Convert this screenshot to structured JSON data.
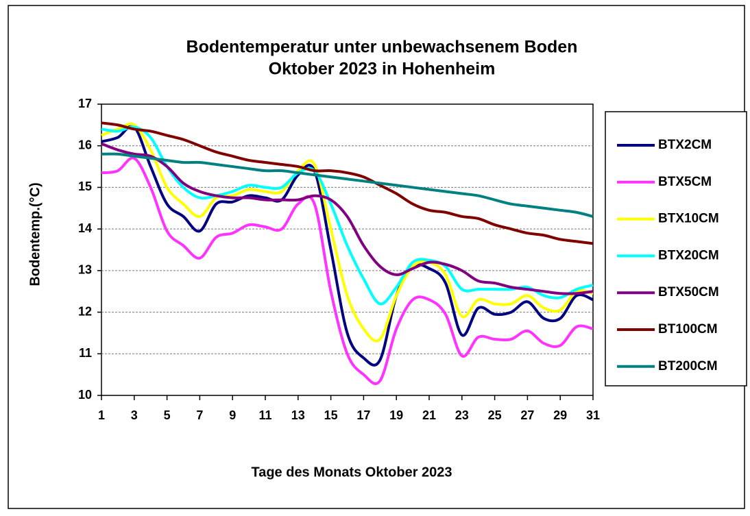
{
  "chart_data": {
    "type": "line",
    "title": [
      "Bodentemperatur unter unbewachsenem Boden",
      "Oktober 2023 in Hohenheim"
    ],
    "x_label": "Tage des Monats Oktober 2023",
    "y_label": "Bodentemp.(°C)",
    "x": [
      1,
      2,
      3,
      4,
      5,
      6,
      7,
      8,
      9,
      10,
      11,
      12,
      13,
      14,
      15,
      16,
      17,
      18,
      19,
      20,
      21,
      22,
      23,
      24,
      25,
      26,
      27,
      28,
      29,
      30,
      31
    ],
    "xlim": [
      1,
      31
    ],
    "xticks": [
      1,
      3,
      5,
      7,
      9,
      11,
      13,
      15,
      17,
      19,
      21,
      23,
      25,
      27,
      29,
      31
    ],
    "ylim": [
      10,
      17
    ],
    "yticks": [
      10,
      11,
      12,
      13,
      14,
      15,
      16,
      17
    ],
    "grid": true,
    "legend": "right",
    "series": [
      {
        "name": "BTX2CM",
        "color": "#000080",
        "values": [
          16.1,
          16.2,
          16.45,
          15.5,
          14.6,
          14.3,
          13.95,
          14.6,
          14.65,
          14.8,
          14.75,
          14.7,
          15.3,
          15.4,
          13.5,
          11.5,
          10.9,
          10.85,
          12.4,
          13.1,
          13.05,
          12.7,
          11.45,
          12.1,
          11.95,
          12.0,
          12.25,
          11.85,
          11.85,
          12.4,
          12.3
        ]
      },
      {
        "name": "BTX5CM",
        "color": "#ff33ff",
        "values": [
          15.35,
          15.4,
          15.7,
          15.0,
          13.95,
          13.6,
          13.3,
          13.8,
          13.9,
          14.1,
          14.05,
          14.0,
          14.6,
          14.6,
          12.5,
          11.0,
          10.5,
          10.35,
          11.6,
          12.3,
          12.3,
          11.95,
          10.95,
          11.4,
          11.35,
          11.35,
          11.55,
          11.25,
          11.2,
          11.65,
          11.6
        ]
      },
      {
        "name": "BTX10CM",
        "color": "#ffff00",
        "values": [
          16.25,
          16.4,
          16.5,
          15.9,
          15.0,
          14.6,
          14.3,
          14.75,
          14.8,
          14.95,
          14.9,
          14.9,
          15.4,
          15.55,
          14.0,
          12.4,
          11.6,
          11.35,
          12.4,
          13.1,
          13.2,
          12.9,
          11.9,
          12.3,
          12.2,
          12.2,
          12.4,
          12.1,
          12.05,
          12.5,
          12.45
        ]
      },
      {
        "name": "BTX20CM",
        "color": "#00ffff",
        "values": [
          16.4,
          16.35,
          16.45,
          16.2,
          15.5,
          15.0,
          14.75,
          14.8,
          14.9,
          15.05,
          15.0,
          15.0,
          15.35,
          15.4,
          14.6,
          13.6,
          12.8,
          12.2,
          12.6,
          13.2,
          13.25,
          13.1,
          12.55,
          12.55,
          12.55,
          12.55,
          12.6,
          12.4,
          12.35,
          12.55,
          12.65
        ]
      },
      {
        "name": "BTX50CM",
        "color": "#800080",
        "values": [
          16.05,
          15.9,
          15.8,
          15.75,
          15.5,
          15.1,
          14.9,
          14.8,
          14.75,
          14.75,
          14.7,
          14.7,
          14.7,
          14.8,
          14.7,
          14.3,
          13.6,
          13.1,
          12.9,
          13.05,
          13.2,
          13.15,
          13.0,
          12.75,
          12.7,
          12.6,
          12.55,
          12.5,
          12.45,
          12.45,
          12.5
        ]
      },
      {
        "name": "BT100CM",
        "color": "#800000",
        "values": [
          16.55,
          16.5,
          16.4,
          16.35,
          16.25,
          16.15,
          16.0,
          15.85,
          15.75,
          15.65,
          15.6,
          15.55,
          15.5,
          15.4,
          15.4,
          15.35,
          15.25,
          15.05,
          14.85,
          14.6,
          14.45,
          14.4,
          14.3,
          14.25,
          14.1,
          14.0,
          13.9,
          13.85,
          13.75,
          13.7,
          13.65
        ]
      },
      {
        "name": "BT200CM",
        "color": "#008080",
        "values": [
          15.8,
          15.8,
          15.75,
          15.7,
          15.65,
          15.6,
          15.6,
          15.55,
          15.5,
          15.45,
          15.4,
          15.4,
          15.35,
          15.3,
          15.25,
          15.2,
          15.15,
          15.1,
          15.05,
          15.0,
          14.95,
          14.9,
          14.85,
          14.8,
          14.7,
          14.6,
          14.55,
          14.5,
          14.45,
          14.4,
          14.3
        ]
      }
    ]
  }
}
